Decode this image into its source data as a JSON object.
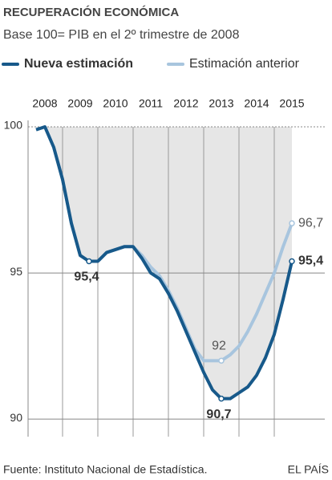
{
  "chart_data": {
    "type": "line",
    "title": "RECUPERACIÓN ECONÓMICA",
    "subtitle": "Base 100= PIB en el 2º trimestre de 2008",
    "source": "Fuente: Instituto Nacional de Estadística.",
    "publisher": "EL PAÍS",
    "categories": [
      null,
      "2008",
      null,
      null,
      null,
      "2009",
      null,
      null,
      null,
      "2010",
      null,
      null,
      null,
      "2011",
      null,
      null,
      null,
      "2012",
      null,
      null,
      null,
      "2013",
      null,
      null,
      null,
      "2014",
      null,
      null,
      null,
      "2015"
    ],
    "series": [
      {
        "name": "Estimación anterior",
        "color": "#a8c5de",
        "values": [
          99.9,
          100,
          99.3,
          98.2,
          96.7,
          95.6,
          95.4,
          95.4,
          95.7,
          95.8,
          95.9,
          95.9,
          95.6,
          95.2,
          94.9,
          94.4,
          93.8,
          93.1,
          92.4,
          92.0,
          92.0,
          92.0,
          92.2,
          92.5,
          93.0,
          93.6,
          94.3,
          95.0,
          95.9,
          96.7
        ],
        "value_labels": [
          null,
          null,
          null,
          null,
          null,
          null,
          null,
          null,
          null,
          null,
          null,
          null,
          null,
          null,
          null,
          null,
          null,
          null,
          null,
          null,
          null,
          "92",
          null,
          null,
          null,
          null,
          null,
          null,
          null,
          "96,7"
        ]
      },
      {
        "name": "Nueva estimación",
        "color": "#17598a",
        "values": [
          99.9,
          100,
          99.3,
          98.2,
          96.7,
          95.6,
          95.4,
          95.4,
          95.7,
          95.8,
          95.9,
          95.9,
          95.5,
          95.0,
          94.8,
          94.3,
          93.7,
          93.0,
          92.3,
          91.6,
          91.0,
          90.7,
          90.7,
          90.9,
          91.1,
          91.5,
          92.1,
          92.9,
          94.1,
          95.4
        ],
        "value_labels": [
          null,
          null,
          null,
          null,
          null,
          null,
          "95,4",
          null,
          null,
          null,
          null,
          null,
          null,
          null,
          null,
          null,
          null,
          null,
          null,
          null,
          null,
          "90,7",
          null,
          null,
          null,
          null,
          null,
          null,
          null,
          "95,4"
        ]
      }
    ],
    "ylim": [
      89.4,
      100
    ],
    "yticks": [
      90,
      95,
      100
    ],
    "grid": true
  }
}
